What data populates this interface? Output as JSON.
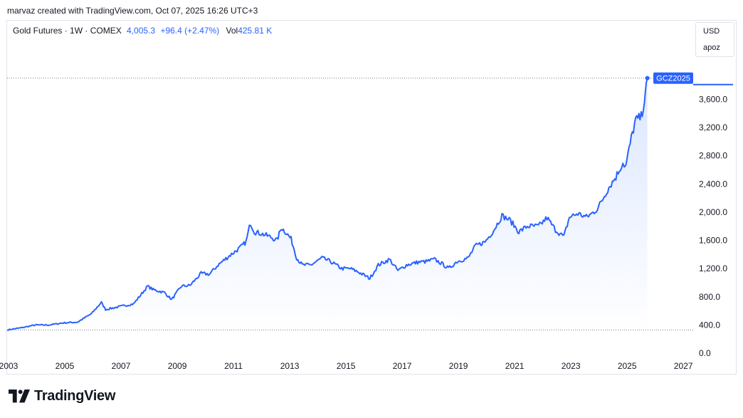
{
  "header": {
    "text": "marvaz created with TradingView.com, Oct 07, 2025 16:26 UTC+3"
  },
  "legend": {
    "symbol": "Gold Futures · 1W · COMEX",
    "price": "4,005.3",
    "change": "+96.4 (+2.47%)",
    "vol_label": "Vol",
    "vol_value": "425.81 K"
  },
  "currency": {
    "currency": "USD",
    "unit": "apoz"
  },
  "price_tag": "GCZ2025",
  "brand": {
    "name": "TradingView"
  },
  "colors": {
    "line": "#2962ff",
    "area_top": "#dbe6ff",
    "area_bottom": "#ffffff",
    "grid_dotted": "#787b86",
    "text": "#131722"
  },
  "chart_data": {
    "type": "area",
    "symbol": "GCZ2025",
    "x_tick_labels": [
      "2003",
      "2005",
      "2007",
      "2009",
      "2011",
      "2013",
      "2015",
      "2017",
      "2019",
      "2021",
      "2023",
      "2025",
      "2027"
    ],
    "y_tick_labels": [
      "0.0",
      "400.0",
      "800.0",
      "1,200.0",
      "1,600.0",
      "2,000.0",
      "2,400.0",
      "2,800.0",
      "3,200.0",
      "3,600.0"
    ],
    "y_ticks": [
      0,
      400,
      800,
      1200,
      1600,
      2000,
      2400,
      2800,
      3200,
      3600
    ],
    "xlim": [
      2003.0,
      2027.4
    ],
    "ylim": [
      0,
      4200
    ],
    "last_price": 4005.3,
    "scale": "linear",
    "series": [
      {
        "x": [
          2003.0,
          2003.5,
          2004.0,
          2004.5,
          2005.0,
          2005.5,
          2006.0,
          2006.35,
          2006.5,
          2007.0,
          2007.5,
          2008.0,
          2008.2,
          2008.6,
          2008.85,
          2009.2,
          2009.5,
          2009.9,
          2010.2,
          2010.5,
          2010.9,
          2011.3,
          2011.5,
          2011.65,
          2011.8,
          2012.0,
          2012.3,
          2012.6,
          2012.75,
          2012.9,
          2013.1,
          2013.3,
          2013.5,
          2013.8,
          2014.2,
          2014.5,
          2014.9,
          2015.2,
          2015.5,
          2015.9,
          2016.2,
          2016.6,
          2016.9,
          2017.2,
          2017.6,
          2017.9,
          2018.2,
          2018.5,
          2018.7,
          2019.0,
          2019.4,
          2019.65,
          2020.0,
          2020.3,
          2020.6,
          2020.9,
          2021.2,
          2021.5,
          2021.9,
          2022.2,
          2022.5,
          2022.8,
          2023.0,
          2023.3,
          2023.6,
          2023.8,
          2024.0,
          2024.2,
          2024.4,
          2024.65,
          2024.9,
          2025.0,
          2025.2,
          2025.35,
          2025.55,
          2025.7,
          2025.77
        ],
        "y": [
          330,
          360,
          400,
          400,
          430,
          440,
          560,
          720,
          620,
          660,
          700,
          950,
          900,
          860,
          760,
          950,
          960,
          1130,
          1120,
          1250,
          1380,
          1500,
          1580,
          1850,
          1720,
          1700,
          1660,
          1600,
          1780,
          1720,
          1620,
          1350,
          1250,
          1250,
          1350,
          1300,
          1200,
          1200,
          1150,
          1060,
          1250,
          1330,
          1170,
          1250,
          1290,
          1300,
          1330,
          1260,
          1200,
          1300,
          1350,
          1520,
          1580,
          1740,
          1950,
          1880,
          1720,
          1800,
          1800,
          1920,
          1750,
          1650,
          1930,
          1980,
          1930,
          1980,
          2050,
          2200,
          2350,
          2500,
          2700,
          2650,
          3050,
          3300,
          3350,
          3650,
          3900
        ]
      }
    ]
  }
}
